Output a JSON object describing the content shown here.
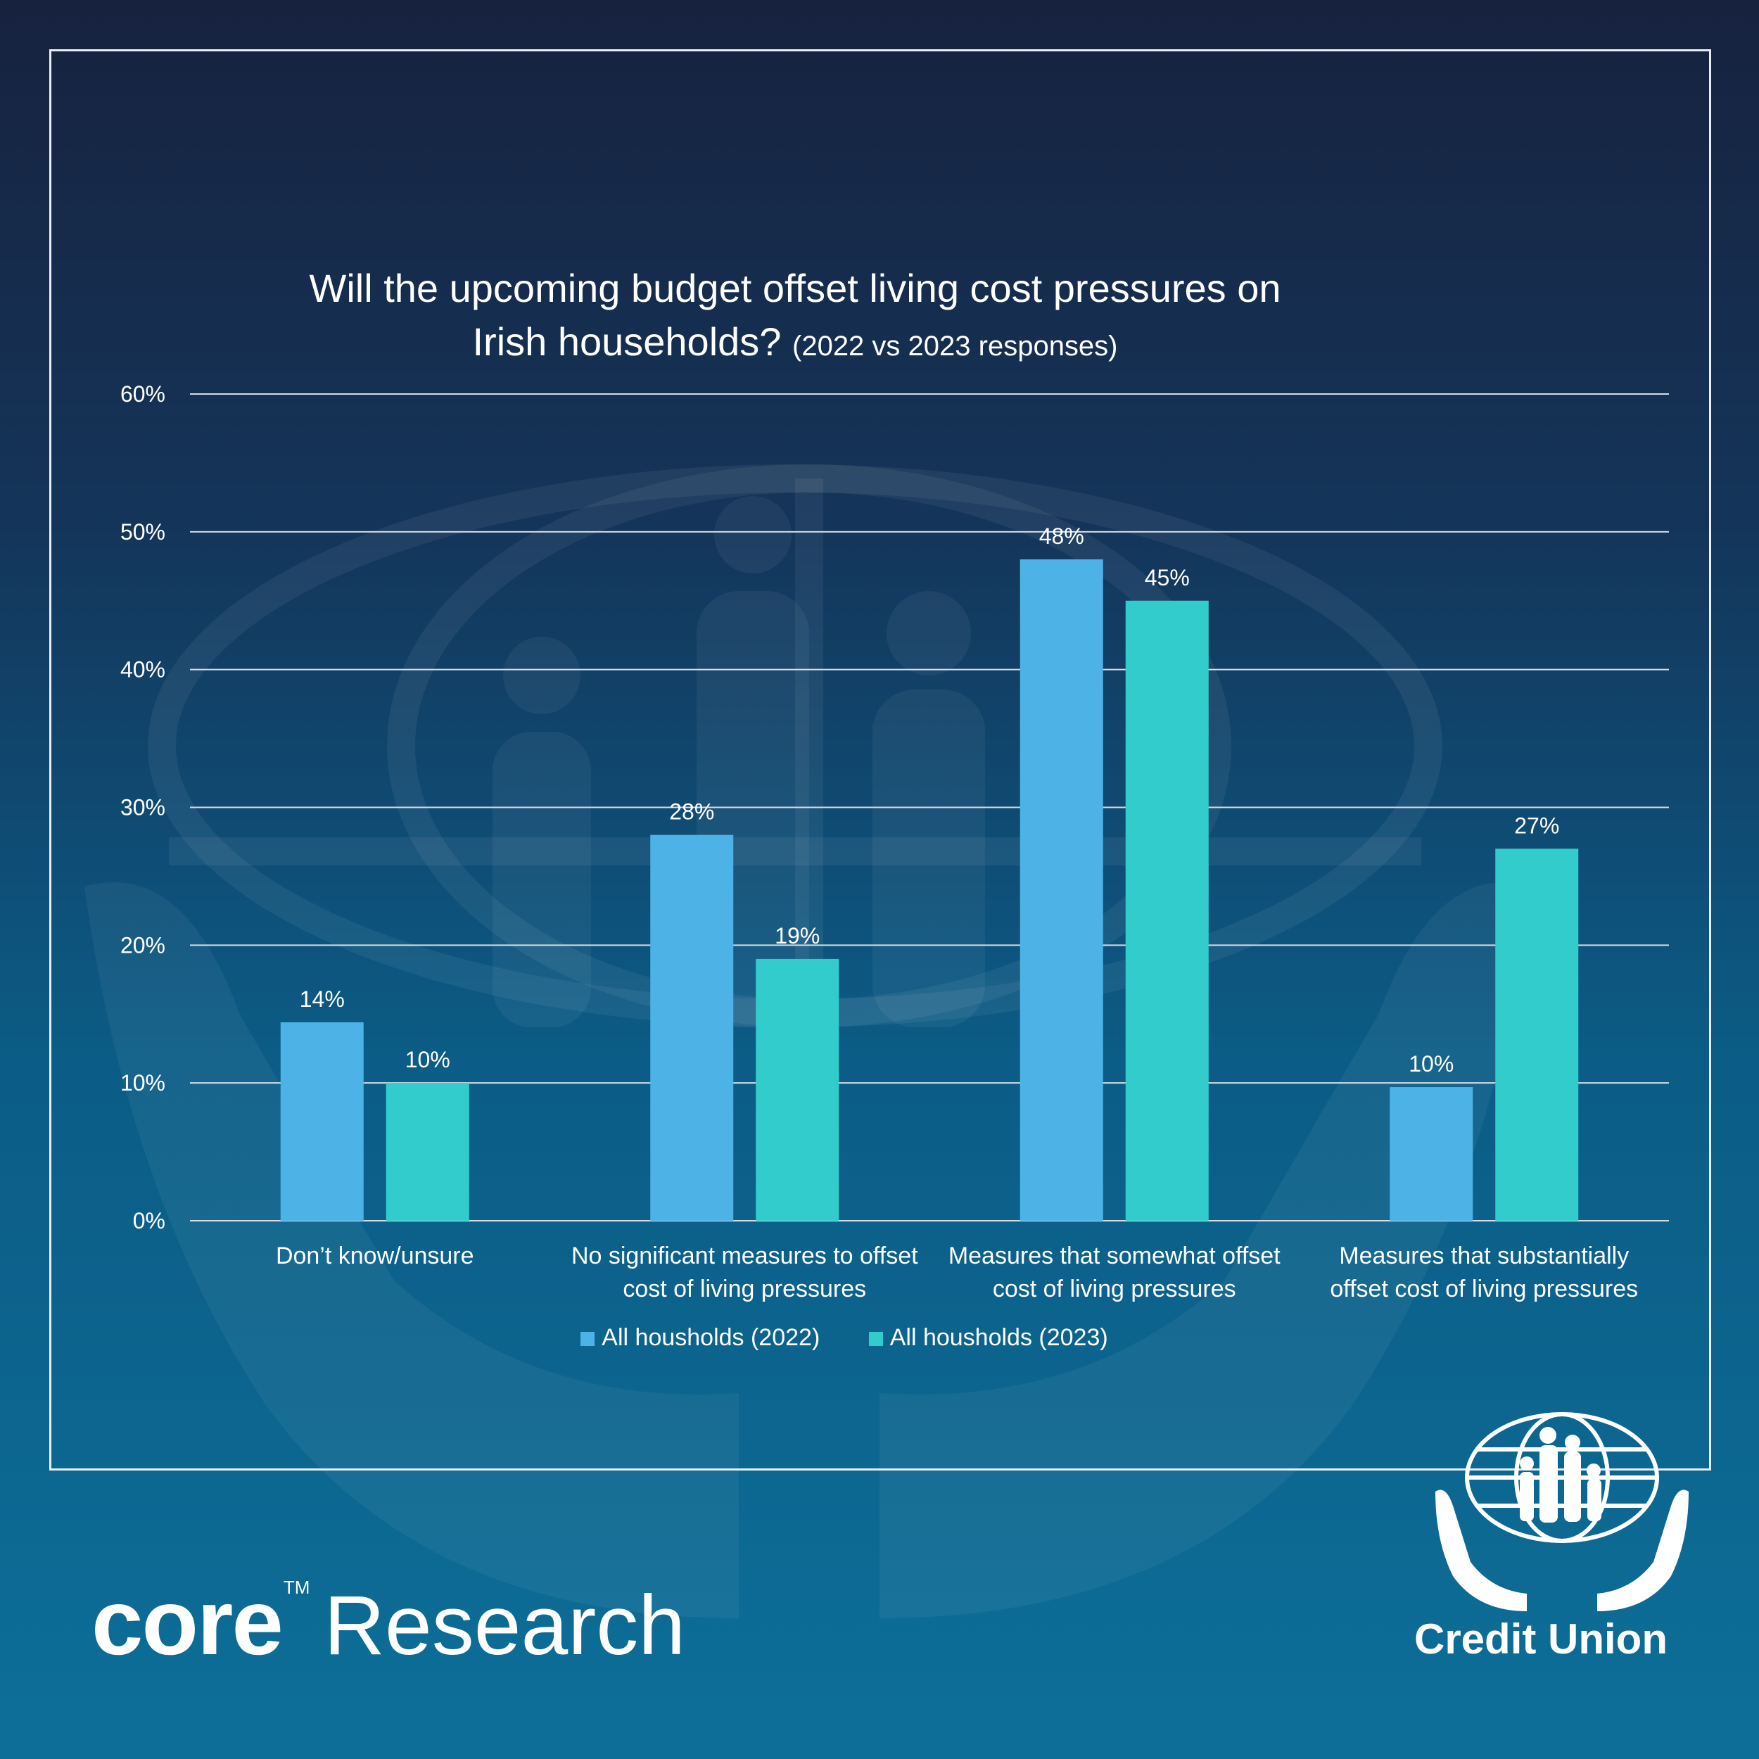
{
  "colors": {
    "series_2022": "#4db3e6",
    "series_2023": "#33cccc",
    "grid": "#d5dde6",
    "text": "#ffffff"
  },
  "title": {
    "main": "Will the upcoming budget offset living cost pressures on Irish households?",
    "sub": "(2022 vs 2023 responses)"
  },
  "chart_data": {
    "type": "bar",
    "categories": [
      [
        "Don’t know/unsure"
      ],
      [
        "No significant measures to offset",
        "cost of living pressures"
      ],
      [
        "Measures that somewhat offset",
        "cost of living pressures"
      ],
      [
        "Measures that substantially",
        "offset cost of living pressures"
      ]
    ],
    "series": [
      {
        "name": "All housholds (2022)",
        "values": [
          14.4,
          28,
          48,
          9.7
        ],
        "labels": [
          "14%",
          "28%",
          "48%",
          "10%"
        ]
      },
      {
        "name": "All housholds (2023)",
        "values": [
          10,
          19,
          45,
          27
        ],
        "labels": [
          "10%",
          "19%",
          "45%",
          "27%"
        ]
      }
    ],
    "ylim": [
      0,
      60
    ],
    "yticks": [
      0,
      10,
      20,
      30,
      40,
      50,
      60
    ],
    "ytick_labels": [
      "0%",
      "10%",
      "20%",
      "30%",
      "40%",
      "50%",
      "60%"
    ],
    "grid": true,
    "legend": "bottom"
  },
  "branding": {
    "core_word": "core",
    "tm": "TM",
    "research": "Research",
    "credit_union": "Credit Union",
    "credit_union_icon": "globe-family-hands-icon"
  }
}
